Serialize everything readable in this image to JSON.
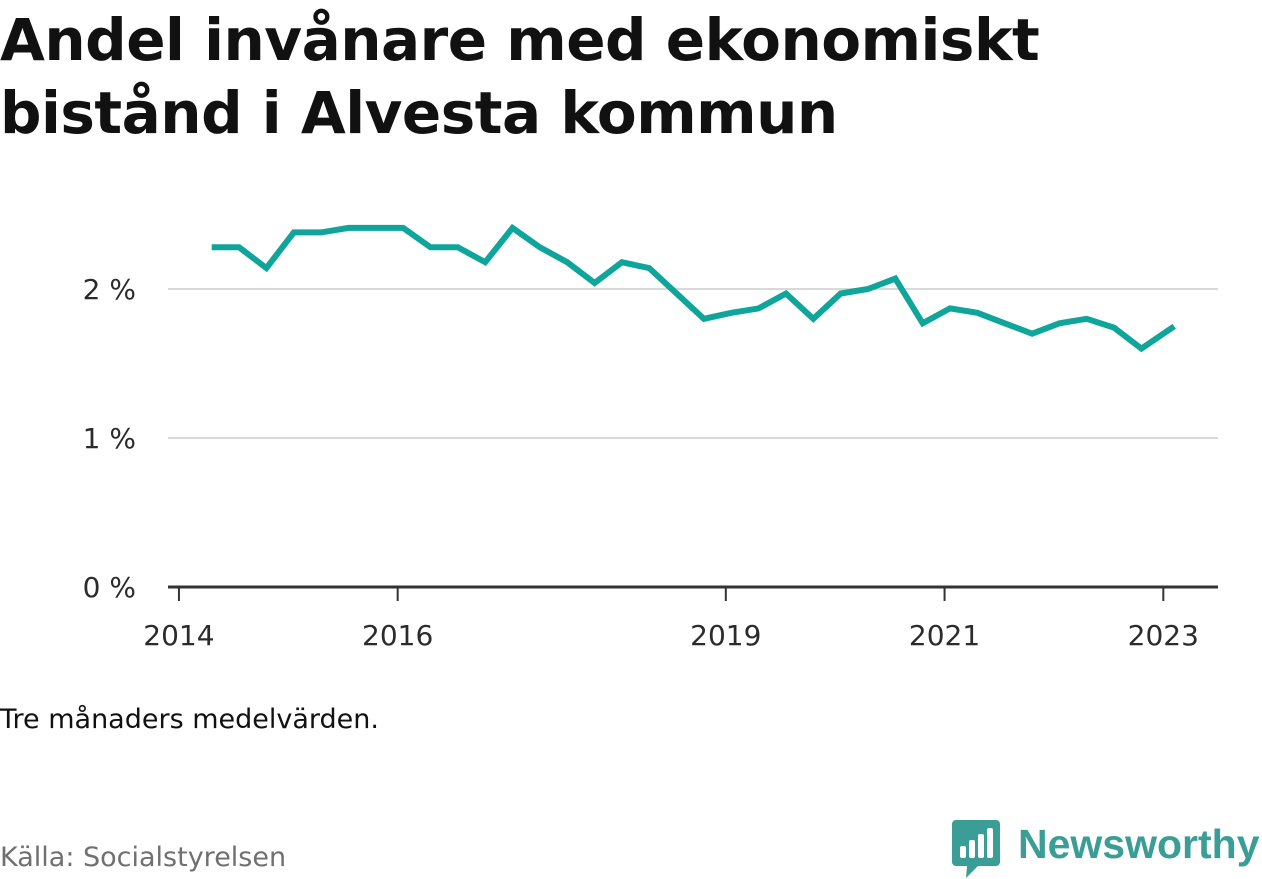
{
  "title_lines": [
    "Andel invånare med ekonomiskt",
    "bistånd i Alvesta kommun"
  ],
  "note": "Tre månaders medelvärden.",
  "source": "Källa: Socialstyrelsen",
  "brand": {
    "name": "Newsworthy",
    "icon": "bar-chart-speech-bubble-icon",
    "color": "#3a9e96"
  },
  "chart_data": {
    "type": "line",
    "title": "Andel invånare med ekonomiskt bistånd i Alvesta kommun",
    "xlabel": "",
    "ylabel": "",
    "ylim": [
      0,
      2.6
    ],
    "xlim": [
      2013.9,
      2023.5
    ],
    "y_ticks": [
      {
        "value": 0,
        "label": "0 %"
      },
      {
        "value": 1,
        "label": "1 %"
      },
      {
        "value": 2,
        "label": "2 %"
      }
    ],
    "x_ticks": [
      {
        "value": 2014,
        "label": "2014"
      },
      {
        "value": 2016,
        "label": "2016"
      },
      {
        "value": 2019,
        "label": "2019"
      },
      {
        "value": 2021,
        "label": "2021"
      },
      {
        "value": 2023,
        "label": "2023"
      }
    ],
    "grid": true,
    "color": "#0fa59a",
    "series": [
      {
        "x": [
          2014.3,
          2014.55,
          2014.8,
          2015.05,
          2015.3,
          2015.55,
          2015.8,
          2016.05,
          2016.3,
          2016.55,
          2016.8,
          2017.05,
          2017.3,
          2017.55,
          2017.8,
          2018.05,
          2018.3,
          2018.55,
          2018.8,
          2019.05,
          2019.3,
          2019.55,
          2019.8,
          2020.05,
          2020.3,
          2020.55,
          2020.8,
          2021.05,
          2021.3,
          2021.55,
          2021.8,
          2022.05,
          2022.3,
          2022.55,
          2022.8,
          2023.1
        ],
        "y": [
          2.28,
          2.28,
          2.14,
          2.38,
          2.38,
          2.41,
          2.41,
          2.41,
          2.28,
          2.28,
          2.18,
          2.41,
          2.28,
          2.18,
          2.04,
          2.18,
          2.14,
          1.97,
          1.8,
          1.84,
          1.87,
          1.97,
          1.8,
          1.97,
          2.0,
          2.07,
          1.77,
          1.87,
          1.84,
          1.77,
          1.7,
          1.77,
          1.8,
          1.74,
          1.6,
          1.75
        ]
      }
    ]
  }
}
